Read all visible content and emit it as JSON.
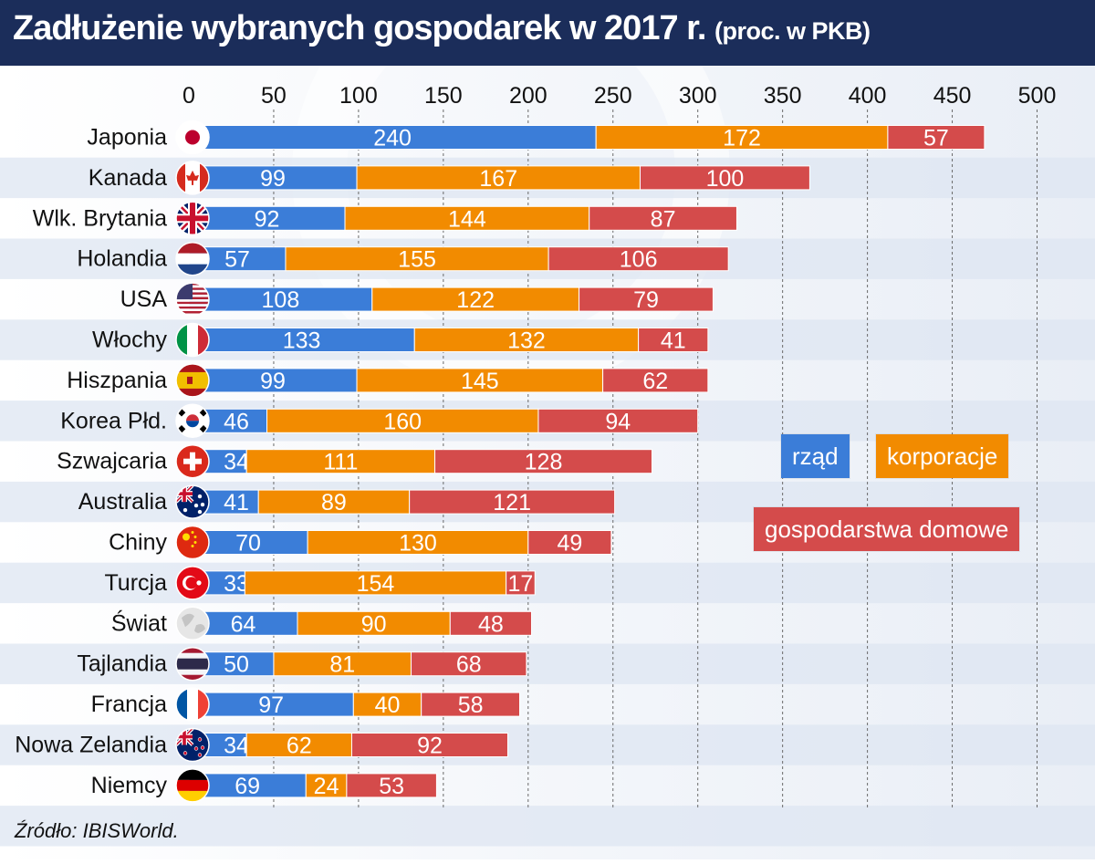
{
  "title": "Zadłużenie wybranych gospodarek w 2017 r.",
  "subtitle": "(proc. w PKB)",
  "source": "Źródło: IBISWorld.",
  "chart_data": {
    "type": "bar",
    "orientation": "horizontal",
    "stacked": true,
    "categories": [
      "Japonia",
      "Kanada",
      "Wlk. Brytania",
      "Holandia",
      "USA",
      "Włochy",
      "Hiszpania",
      "Korea Płd.",
      "Szwajcaria",
      "Australia",
      "Chiny",
      "Turcja",
      "Świat",
      "Tajlandia",
      "Francja",
      "Nowa Zelandia",
      "Niemcy"
    ],
    "series": [
      {
        "name": "rząd",
        "color": "#3b7dd8",
        "values": [
          240,
          99,
          92,
          57,
          108,
          133,
          99,
          46,
          34,
          41,
          70,
          33,
          64,
          50,
          97,
          34,
          69
        ]
      },
      {
        "name": "korporacje",
        "color": "#f28b00",
        "values": [
          172,
          167,
          144,
          155,
          122,
          132,
          145,
          160,
          111,
          89,
          130,
          154,
          90,
          81,
          40,
          62,
          24
        ]
      },
      {
        "name": "gospodarstwa domowe",
        "color": "#d44b4b",
        "values": [
          57,
          100,
          87,
          106,
          79,
          41,
          62,
          94,
          128,
          121,
          49,
          17,
          48,
          68,
          58,
          92,
          53
        ]
      }
    ],
    "xlim": [
      0,
      500
    ],
    "x_ticks": [
      0,
      50,
      100,
      150,
      200,
      250,
      300,
      350,
      400,
      450,
      500
    ],
    "grid": "vertical dotted",
    "legend_placement": "right-middle",
    "flags": [
      "flag-japan",
      "flag-canada",
      "flag-uk",
      "flag-netherlands",
      "flag-usa",
      "flag-italy",
      "flag-spain",
      "flag-south-korea",
      "flag-switzerland",
      "flag-australia",
      "flag-china",
      "flag-turkey",
      "globe-world",
      "flag-thailand",
      "flag-france",
      "flag-new-zealand",
      "flag-germany"
    ]
  }
}
